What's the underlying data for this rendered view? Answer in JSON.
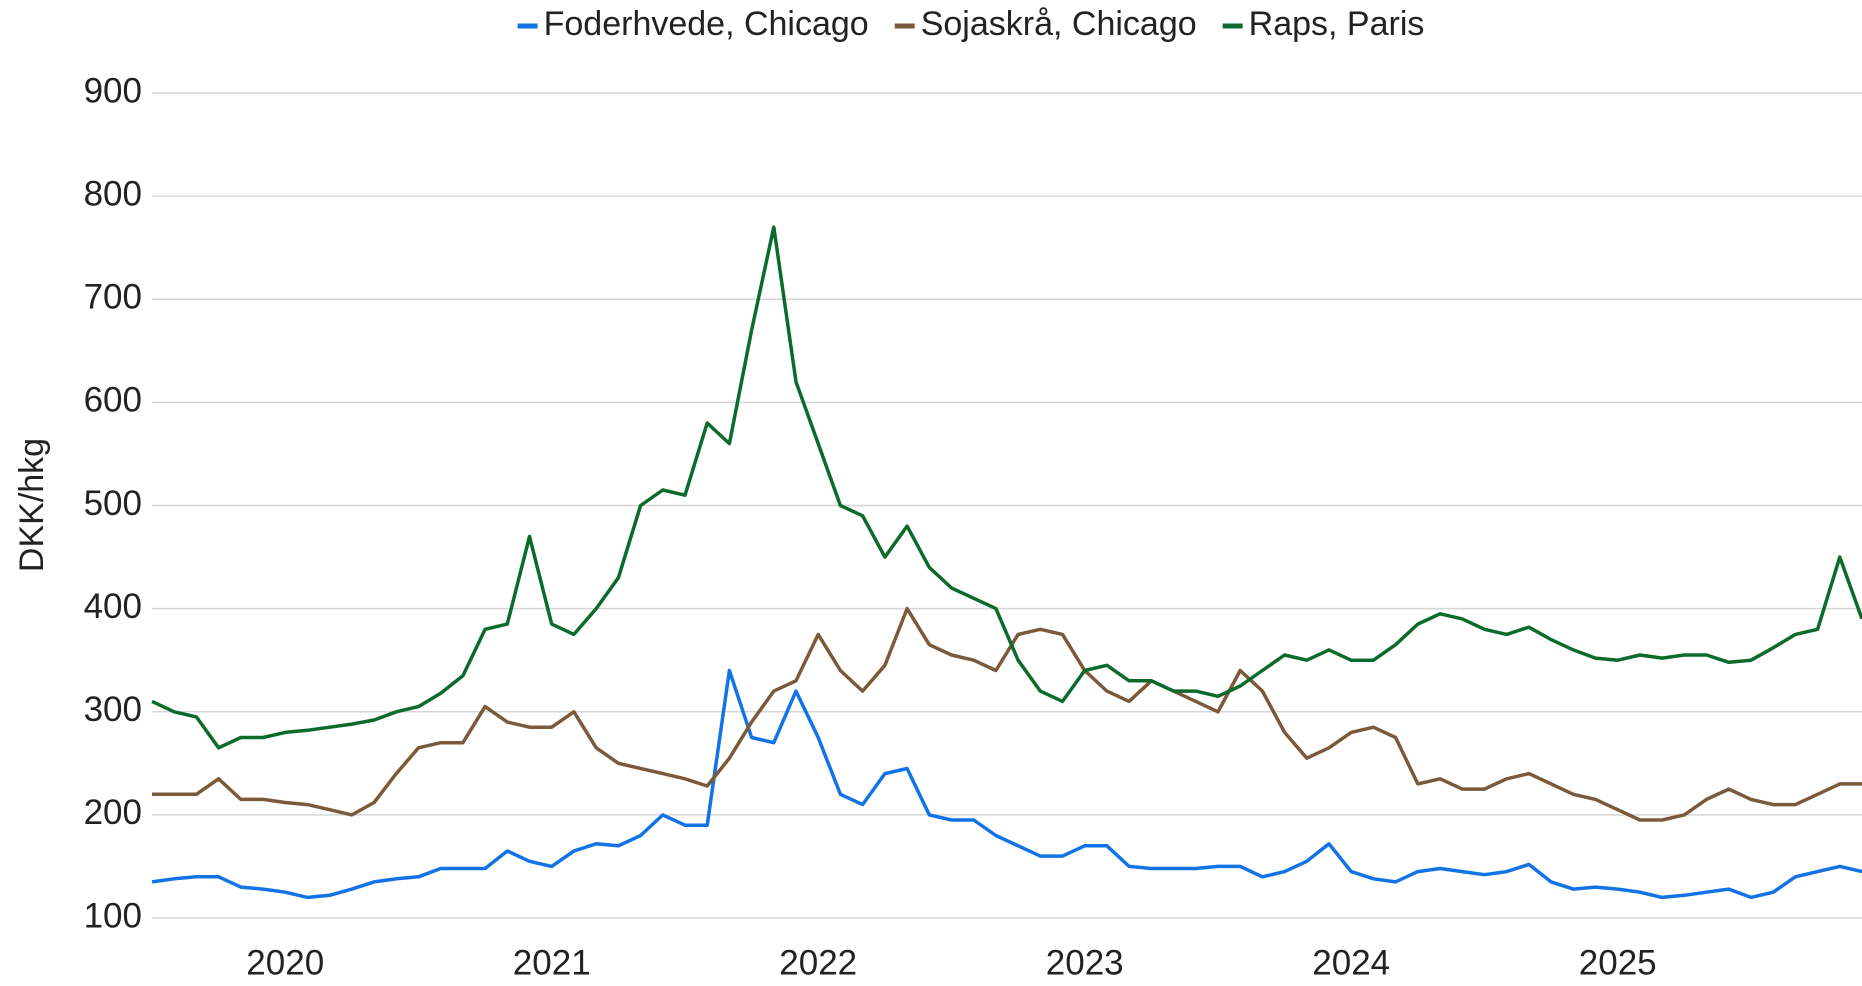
{
  "chart_data": {
    "type": "line",
    "y_label": "DKK/hkg",
    "categories": [
      null,
      null,
      null,
      null,
      null,
      null,
      "2020",
      null,
      null,
      null,
      null,
      null,
      null,
      null,
      null,
      null,
      null,
      null,
      "2021",
      null,
      null,
      null,
      null,
      null,
      null,
      null,
      null,
      null,
      null,
      null,
      "2022",
      null,
      null,
      null,
      null,
      null,
      null,
      null,
      null,
      null,
      null,
      null,
      "2023",
      null,
      null,
      null,
      null,
      null,
      null,
      null,
      null,
      null,
      null,
      null,
      "2024",
      null,
      null,
      null,
      null,
      null,
      null,
      null,
      null,
      null,
      null,
      null,
      "2025",
      null,
      null,
      null,
      null,
      null,
      null,
      null,
      null,
      null,
      null,
      null
    ],
    "ylim": [
      100,
      900
    ],
    "yticks": [
      100,
      200,
      300,
      400,
      500,
      600,
      700,
      800,
      900
    ],
    "grid": true,
    "legend": "top",
    "series": [
      {
        "name": "Foderhvede, Chicago",
        "color": "#1273e6",
        "values": [
          135,
          138,
          140,
          140,
          130,
          128,
          125,
          120,
          122,
          128,
          135,
          138,
          140,
          148,
          148,
          148,
          165,
          155,
          150,
          165,
          172,
          170,
          180,
          200,
          190,
          190,
          340,
          275,
          270,
          320,
          275,
          220,
          210,
          240,
          245,
          200,
          195,
          195,
          180,
          170,
          160,
          160,
          170,
          170,
          150,
          148,
          148,
          148,
          150,
          150,
          140,
          145,
          155,
          172,
          145,
          138,
          135,
          145,
          148,
          145,
          142,
          145,
          152,
          135,
          128,
          130,
          128,
          125,
          120,
          122,
          125,
          128,
          120,
          125,
          140,
          145,
          150,
          145
        ]
      },
      {
        "name": "Sojaskrå, Chicago",
        "color": "#7b5a3b",
        "values": [
          220,
          220,
          220,
          235,
          215,
          215,
          212,
          210,
          205,
          200,
          212,
          240,
          265,
          270,
          270,
          305,
          290,
          285,
          285,
          300,
          265,
          250,
          245,
          240,
          235,
          228,
          255,
          290,
          320,
          330,
          375,
          340,
          320,
          345,
          400,
          365,
          355,
          350,
          340,
          375,
          380,
          375,
          340,
          320,
          310,
          330,
          320,
          310,
          300,
          340,
          320,
          280,
          255,
          265,
          280,
          285,
          275,
          230,
          235,
          225,
          225,
          235,
          240,
          230,
          220,
          215,
          205,
          195,
          195,
          200,
          215,
          225,
          215,
          210,
          210,
          220,
          230,
          230
        ]
      },
      {
        "name": "Raps, Paris",
        "color": "#0c6b2b",
        "values": [
          310,
          300,
          295,
          265,
          275,
          275,
          280,
          282,
          285,
          288,
          292,
          300,
          305,
          318,
          335,
          380,
          385,
          470,
          385,
          375,
          400,
          430,
          500,
          515,
          510,
          580,
          560,
          670,
          770,
          620,
          560,
          500,
          490,
          450,
          480,
          440,
          420,
          410,
          400,
          350,
          320,
          310,
          340,
          345,
          330,
          330,
          320,
          320,
          315,
          325,
          340,
          355,
          350,
          360,
          350,
          350,
          365,
          385,
          395,
          390,
          380,
          375,
          382,
          370,
          360,
          352,
          350,
          355,
          352,
          355,
          355,
          348,
          350,
          362,
          375,
          380,
          450,
          390
        ]
      }
    ]
  }
}
